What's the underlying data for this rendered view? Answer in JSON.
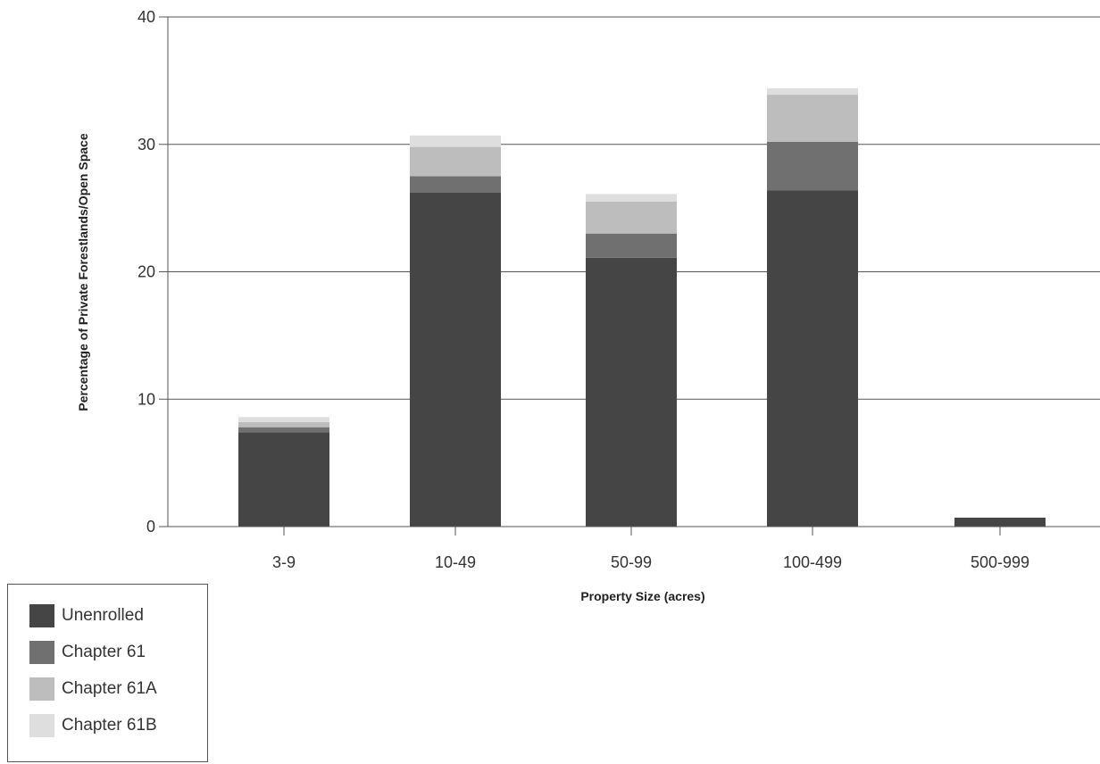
{
  "chart_data": {
    "type": "bar",
    "stacked": true,
    "title": "",
    "xlabel": "Property Size (acres)",
    "ylabel": "Percentage of Private Forestlands/Open Space",
    "categories": [
      "3-9",
      "10-49",
      "50-99",
      "100-499",
      "500-999"
    ],
    "ylim": [
      0,
      40
    ],
    "yticks": [
      0,
      10,
      20,
      30,
      40
    ],
    "grid": true,
    "legend_position": "bottom-left",
    "series": [
      {
        "name": "Unenrolled",
        "color": "#454545",
        "values": [
          7.4,
          26.2,
          21.1,
          26.4,
          0.7
        ]
      },
      {
        "name": "Chapter 61",
        "color": "#707070",
        "values": [
          0.4,
          1.3,
          1.9,
          3.8,
          0.0
        ]
      },
      {
        "name": "Chapter 61A",
        "color": "#bdbdbd",
        "values": [
          0.4,
          2.3,
          2.5,
          3.7,
          0.0
        ]
      },
      {
        "name": "Chapter 61B",
        "color": "#dedede",
        "values": [
          0.4,
          0.9,
          0.6,
          0.5,
          0.0
        ]
      }
    ]
  }
}
